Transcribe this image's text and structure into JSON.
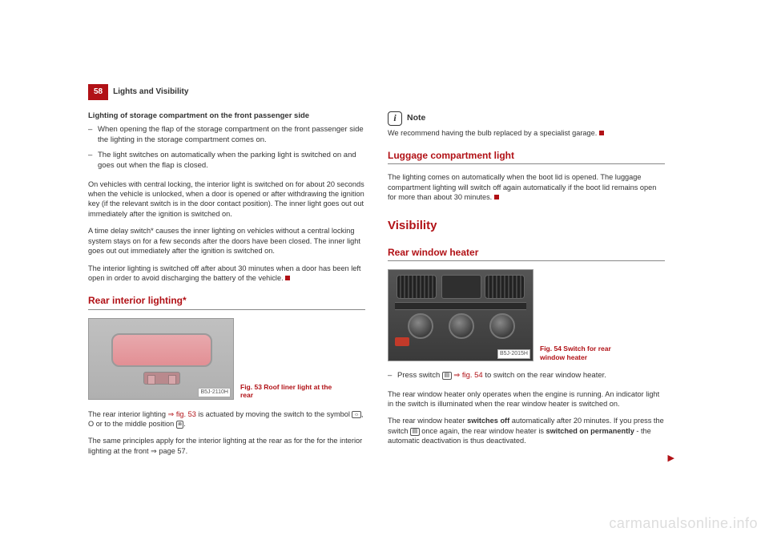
{
  "page_number": "58",
  "header": "Lights and Visibility",
  "left": {
    "storage_heading": "Lighting of storage compartment on the front passenger side",
    "bullets": [
      "When opening the flap of the storage compartment on the front passenger side the lighting in the storage compartment comes on.",
      "The light switches on automatically when the parking light is switched on and goes out when the flap is closed."
    ],
    "p1": "On vehicles with central locking, the interior light is switched on for about 20 seconds when the vehicle is unlocked, when a door is opened or after withdrawing the ignition key (if the relevant switch is in the door contact position). The inner light goes out out immediately after the ignition is switched on.",
    "p2": "A time delay switch* causes the inner lighting on vehicles without a central locking system stays on for a few seconds after the doors have been closed. The inner light goes out out immediately after the ignition is switched on.",
    "p3_a": "The interior lighting is switched off after about 30 minutes when a door has been left open in order to avoid discharging the battery of the vehicle.",
    "section_rear": "Rear interior lighting*",
    "fig53_caption": "Fig. 53  Roof liner light at the rear",
    "fig53_label": "B5J-2110H",
    "rear_p1_a": "The rear interior lighting ",
    "rear_p1_ref": "⇒ fig. 53",
    "rear_p1_b": " is actuated by moving the switch to the symbol ",
    "rear_p1_c": ", O or to the middle position ",
    "rear_p1_d": ".",
    "rear_p2": "The same principles apply for the interior lighting at the rear as for the for the interior lighting at the front ⇒ page 57."
  },
  "right": {
    "note_label": "Note",
    "note_text": "We recommend having the bulb replaced by a specialist garage.",
    "luggage_title": "Luggage compartment light",
    "luggage_text": "The lighting comes on automatically when the boot lid is opened. The luggage compartment lighting will switch off again automatically if the boot lid remains open for more than about 30 minutes.",
    "visibility_title": "Visibility",
    "rear_heater_title": "Rear window heater",
    "fig54_caption": "Fig. 54  Switch for rear window heater",
    "fig54_label": "B5J-2015H",
    "press_a": "Press switch ",
    "press_ref": " ⇒ fig. 54",
    "press_b": " to switch on the rear window heater.",
    "heater_p1": "The rear window heater only operates when the engine is running. An indicator light in the switch is illuminated when the rear window heater is switched on.",
    "heater_p2_a": "The rear window heater ",
    "heater_p2_bold1": "switches off",
    "heater_p2_b": " automatically after 20 minutes. If you press the switch ",
    "heater_p2_c": " once again, the rear window heater is ",
    "heater_p2_bold2": "switched on permanently",
    "heater_p2_d": " - the automatic deactivation is thus deactivated."
  },
  "watermark": "carmanualsonline.info",
  "colors": {
    "accent": "#b11116",
    "text": "#333333"
  }
}
